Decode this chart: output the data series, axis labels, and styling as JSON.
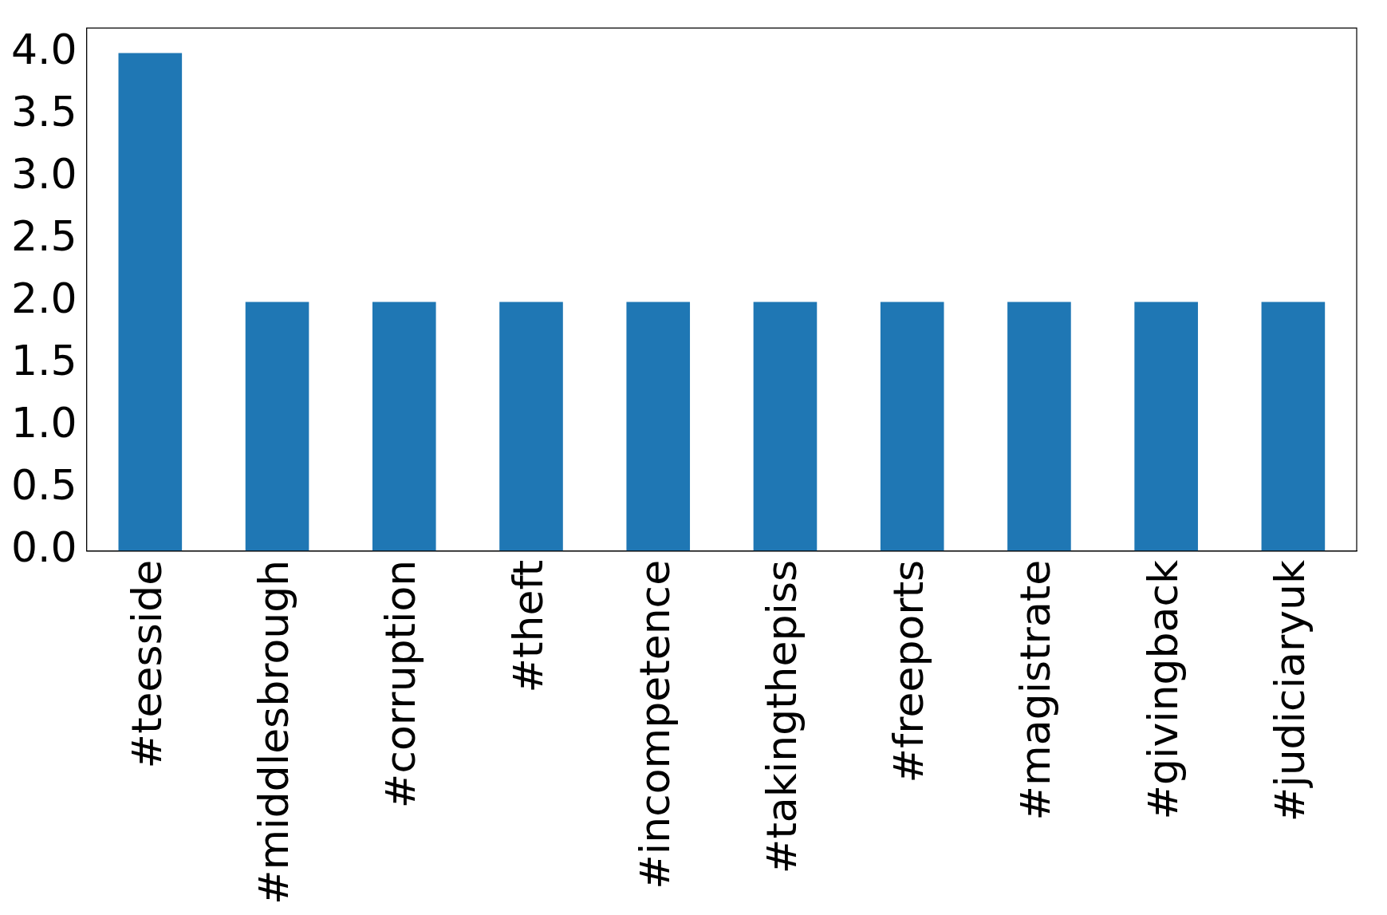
{
  "chart_data": {
    "type": "bar",
    "categories": [
      "#teesside",
      "#middlesbrough",
      "#corruption",
      "#theft",
      "#incompetence",
      "#takingthepiss",
      "#freeports",
      "#magistrate",
      "#givingback",
      "#judiciaryuk"
    ],
    "values": [
      4,
      2,
      2,
      2,
      2,
      2,
      2,
      2,
      2,
      2
    ],
    "color": "#1f77b4",
    "ylim": [
      0,
      4.2
    ],
    "yticks": [
      {
        "value": 0,
        "label": "0.0"
      },
      0.5,
      {
        "value": 1,
        "label": "1.0"
      },
      1.5,
      {
        "value": 2,
        "label": "2.0"
      },
      2.5,
      {
        "value": 3,
        "label": "3.0"
      },
      3.5,
      {
        "value": 4,
        "label": "4.0"
      }
    ],
    "grid": false,
    "legend": false
  }
}
